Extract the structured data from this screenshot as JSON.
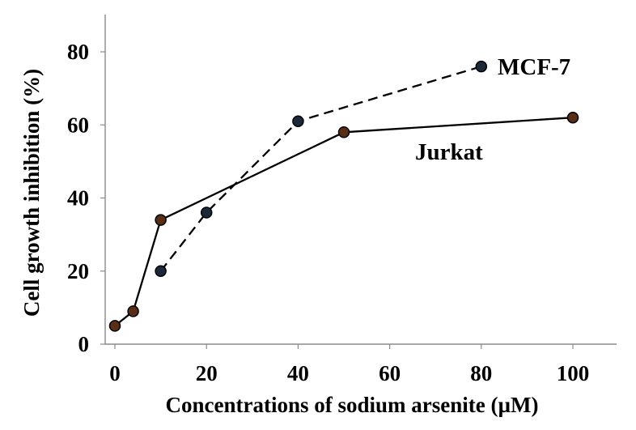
{
  "chart_data": {
    "type": "line",
    "xlabel": "Concentrations of sodium arsenite (µM)",
    "ylabel": "Cell growth inhibition (%)",
    "xlim": [
      0,
      105
    ],
    "ylim": [
      0,
      90
    ],
    "x_ticks": [
      "0",
      "20",
      "40",
      "60",
      "80",
      "100"
    ],
    "y_ticks": [
      "0",
      "20",
      "40",
      "60",
      "80"
    ],
    "grid": false,
    "legend": "none",
    "series": [
      {
        "name": "MCF-7",
        "line_style": "dashed",
        "marker_color": "#1b2a3a",
        "x": [
          10,
          20,
          40,
          80
        ],
        "y": [
          20,
          36,
          61,
          76
        ]
      },
      {
        "name": "Jurkat",
        "line_style": "solid",
        "marker_color": "#5a2e14",
        "x": [
          0,
          4,
          10,
          50,
          100
        ],
        "y": [
          5,
          9,
          34,
          58,
          62
        ]
      }
    ]
  }
}
